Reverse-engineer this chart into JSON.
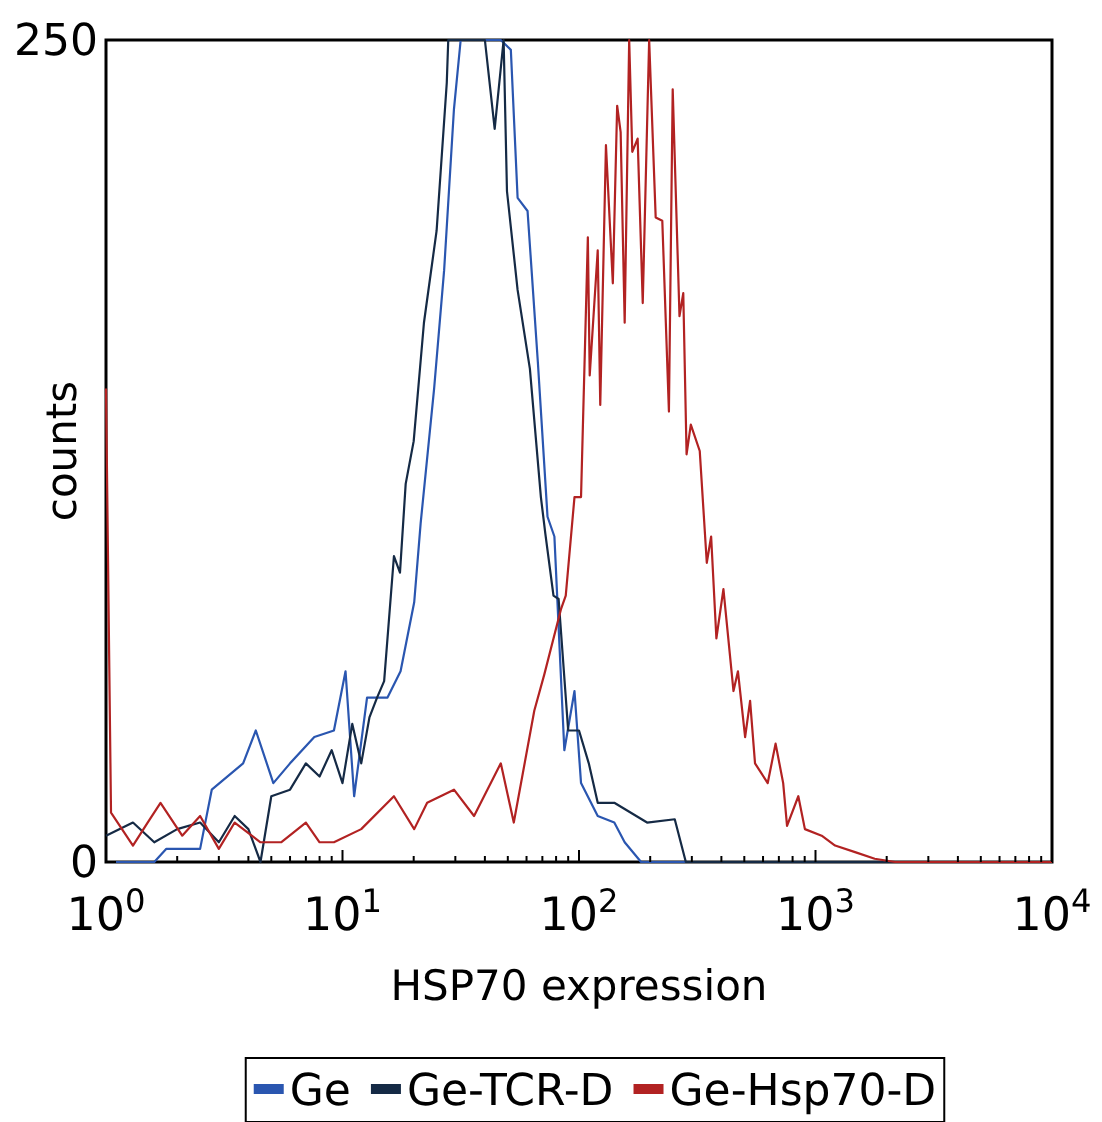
{
  "chart_data": {
    "type": "line",
    "xlabel": "HSP70 expression",
    "ylabel": "counts",
    "log": "x",
    "legend": "bottom",
    "xlim": [
      1,
      10000
    ],
    "ylim": [
      0,
      250
    ],
    "yticks": [
      0,
      250
    ],
    "xticks": [
      {
        "value": 1,
        "label": "10$^{0}$"
      },
      {
        "value": 2,
        "label": null
      },
      {
        "value": 3,
        "label": null
      },
      {
        "value": 4,
        "label": null
      },
      {
        "value": 5,
        "label": null
      },
      {
        "value": 6,
        "label": null
      },
      {
        "value": 7,
        "label": null
      },
      {
        "value": 8,
        "label": null
      },
      {
        "value": 9,
        "label": null
      },
      {
        "value": 10,
        "label": "10$^{1}$"
      },
      {
        "value": 20,
        "label": null
      },
      {
        "value": 30,
        "label": null
      },
      {
        "value": 40,
        "label": null
      },
      {
        "value": 50,
        "label": null
      },
      {
        "value": 60,
        "label": null
      },
      {
        "value": 70,
        "label": null
      },
      {
        "value": 80,
        "label": null
      },
      {
        "value": 90,
        "label": null
      },
      {
        "value": 100,
        "label": "10$^{2}$"
      },
      {
        "value": 200,
        "label": null
      },
      {
        "value": 300,
        "label": null
      },
      {
        "value": 400,
        "label": null
      },
      {
        "value": 500,
        "label": null
      },
      {
        "value": 600,
        "label": null
      },
      {
        "value": 700,
        "label": null
      },
      {
        "value": 800,
        "label": null
      },
      {
        "value": 900,
        "label": null
      },
      {
        "value": 1000,
        "label": "10$^{3}$"
      },
      {
        "value": 2000,
        "label": null
      },
      {
        "value": 3000,
        "label": null
      },
      {
        "value": 4000,
        "label": null
      },
      {
        "value": 5000,
        "label": null
      },
      {
        "value": 6000,
        "label": null
      },
      {
        "value": 7000,
        "label": null
      },
      {
        "value": 8000,
        "label": null
      },
      {
        "value": 9000,
        "label": null
      },
      {
        "value": 10000,
        "label": "10$^{4}$"
      }
    ],
    "series": [
      {
        "name": "Ge",
        "color": "#2a56b0",
        "x": [
          1.0,
          1.6,
          1.8,
          2.5,
          2.8,
          3.8,
          4.3,
          5.1,
          6.0,
          7.6,
          9.2,
          10.3,
          11.2,
          12.7,
          15.5,
          17.6,
          20.1,
          21.4,
          24.4,
          26.9,
          29.6,
          31.6,
          46.7,
          51.5,
          55,
          60.6,
          67,
          73.6,
          78.7,
          86.7,
          95.7,
          102,
          120,
          141,
          156,
          183,
          500,
          10000
        ],
        "values": [
          0,
          0,
          4,
          4,
          22,
          30,
          40,
          24,
          30,
          38,
          40,
          58,
          20,
          50,
          50,
          58,
          79,
          103,
          144,
          180,
          229,
          250,
          250,
          247,
          202,
          198,
          152,
          105,
          99,
          34,
          52,
          24,
          14,
          12,
          6,
          0,
          0,
          0
        ]
      },
      {
        "name": "Ge-TCR-D",
        "color": "#152a45",
        "x": [
          1.0,
          1.3,
          1.6,
          2.0,
          2.5,
          3.0,
          3.5,
          4.0,
          4.5,
          5.0,
          6.0,
          7.0,
          8.0,
          9.0,
          10,
          11,
          12,
          13,
          14,
          15,
          16.5,
          17.5,
          18.5,
          20,
          22.1,
          25,
          27.6,
          28,
          40,
          44,
          48,
          49.6,
          55,
          62,
          69,
          72,
          78,
          82,
          90,
          100,
          110,
          120,
          141,
          194,
          254,
          283,
          10000
        ],
        "values": [
          8,
          12,
          6,
          10,
          12,
          6,
          14,
          10,
          0,
          20,
          22,
          30,
          26,
          34,
          24,
          42,
          30,
          44,
          50,
          55,
          93,
          88,
          115,
          128,
          164,
          192,
          237,
          250,
          250,
          223,
          250,
          204,
          174,
          150,
          111,
          100,
          81,
          80,
          40,
          40,
          30,
          18,
          18,
          12,
          13,
          0,
          0
        ]
      },
      {
        "name": "Ge-Hsp70-D",
        "color": "#b22222",
        "x": [
          1.0,
          1.05,
          1.3,
          1.5,
          1.7,
          2.1,
          2.5,
          3.0,
          3.5,
          4.5,
          5.5,
          7.0,
          8,
          9.2,
          12,
          16.5,
          20.1,
          22.8,
          29.6,
          36,
          46.7,
          53,
          64.7,
          71.3,
          84,
          87.9,
          95.7,
          102,
          109,
          111,
          120,
          123,
          130,
          139,
          145,
          150,
          156,
          163,
          168,
          177,
          186,
          198,
          211,
          225,
          240,
          249,
          266,
          276,
          285,
          297,
          324,
          347,
          362,
          381,
          408,
          450,
          470,
          504,
          529,
          555,
          628,
          678,
          730,
          758,
          846,
          902,
          1062,
          1210,
          1470,
          1780,
          2170,
          10000
        ],
        "values": [
          144,
          15,
          5,
          12,
          18,
          8,
          14,
          4,
          12,
          6,
          6,
          12,
          6,
          6,
          10,
          20,
          10,
          18,
          22,
          14,
          30,
          12,
          46,
          57,
          77,
          81,
          111,
          111,
          190,
          148,
          186,
          139,
          218,
          176,
          230,
          222,
          164,
          250,
          216,
          220,
          170,
          250,
          196,
          195,
          137,
          235,
          166,
          173,
          124,
          133,
          125,
          91,
          99,
          68,
          83,
          52,
          58,
          38,
          49,
          30,
          24,
          36,
          24,
          11,
          20,
          10,
          8,
          5,
          3,
          1,
          0,
          0
        ]
      }
    ]
  }
}
